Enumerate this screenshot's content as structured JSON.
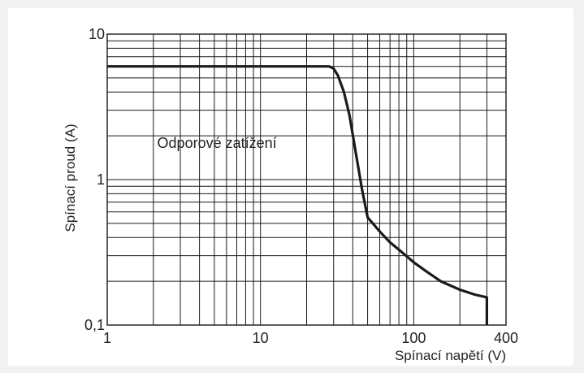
{
  "chart_data": {
    "type": "line",
    "xscale": "log",
    "yscale": "log",
    "xlim": [
      1,
      400
    ],
    "ylim": [
      0.1,
      10
    ],
    "grid": true,
    "xlabel": "Spínací napětí (V)",
    "ylabel": "Spínací proud (A)",
    "x_ticks": [
      {
        "value": 1,
        "label": "1"
      },
      {
        "value": 10,
        "label": "10"
      },
      {
        "value": 100,
        "label": "100"
      },
      {
        "value": 400,
        "label": "400"
      }
    ],
    "y_ticks": [
      {
        "value": 0.1,
        "label": "0,1"
      },
      {
        "value": 1,
        "label": "1"
      },
      {
        "value": 10,
        "label": "10"
      }
    ],
    "annotations": [
      {
        "text": "Odporové zatížení",
        "x": 5.2,
        "y": 1.65
      }
    ],
    "series": [
      {
        "x": [
          1,
          28,
          30,
          32,
          35,
          38,
          42,
          46,
          50,
          60,
          70,
          80,
          100,
          120,
          150,
          200,
          250,
          300,
          300
        ],
        "y": [
          6,
          6,
          5.8,
          5.2,
          4.0,
          2.8,
          1.5,
          0.85,
          0.55,
          0.44,
          0.37,
          0.33,
          0.27,
          0.235,
          0.2,
          0.175,
          0.162,
          0.155,
          0.1
        ]
      }
    ]
  },
  "colors": {
    "background": "#f2f2f2",
    "plot_background": "#ffffff",
    "grid": "#1a1a1a",
    "line": "#1a1a1a",
    "text": "#222222"
  }
}
